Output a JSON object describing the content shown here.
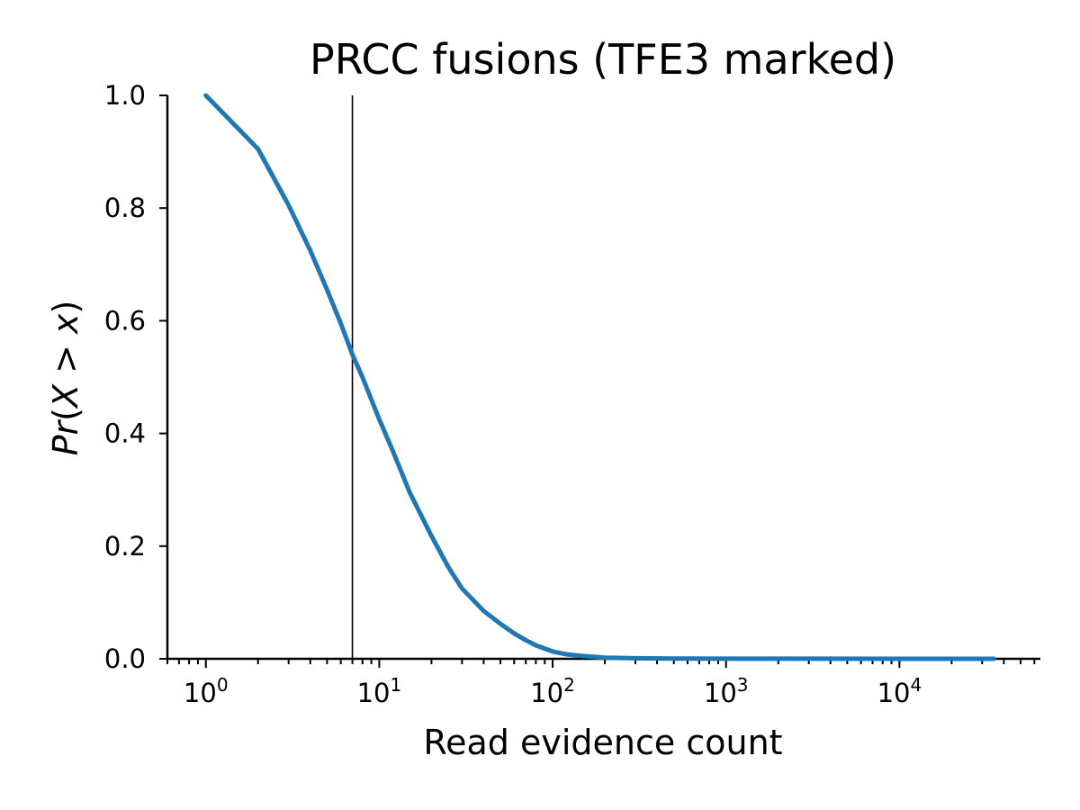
{
  "chart_data": {
    "type": "line",
    "title": "PRCC fusions (TFE3 marked)",
    "xlabel": "Read evidence count",
    "ylabel": "Pr(X > x)",
    "xscale": "log",
    "xlim": [
      0.6,
      65000
    ],
    "ylim": [
      0,
      1.0
    ],
    "grid": false,
    "x_ticks": [
      {
        "base": "10",
        "exp": "0"
      },
      {
        "base": "10",
        "exp": "1"
      },
      {
        "base": "10",
        "exp": "2"
      },
      {
        "base": "10",
        "exp": "3"
      },
      {
        "base": "10",
        "exp": "4"
      }
    ],
    "y_ticks": [
      "0.0",
      "0.2",
      "0.4",
      "0.6",
      "0.8",
      "1.0"
    ],
    "series": [
      {
        "color": "#1f77b4",
        "x": [
          1,
          2,
          3,
          4,
          5,
          6,
          7,
          8,
          10,
          12,
          15,
          20,
          25,
          30,
          40,
          50,
          60,
          70,
          80,
          100,
          120,
          150,
          200,
          300,
          500,
          1000,
          3000,
          10000,
          35000
        ],
        "y": [
          1.0,
          0.905,
          0.805,
          0.725,
          0.655,
          0.595,
          0.54,
          0.5,
          0.425,
          0.368,
          0.295,
          0.218,
          0.163,
          0.125,
          0.085,
          0.062,
          0.045,
          0.033,
          0.024,
          0.013,
          0.008,
          0.005,
          0.002,
          0.001,
          0.0005,
          0.0002,
          0.0001,
          0.0,
          0.0
        ]
      }
    ],
    "vline": {
      "x": 7,
      "color": "#000000",
      "label": "TFE3"
    }
  }
}
